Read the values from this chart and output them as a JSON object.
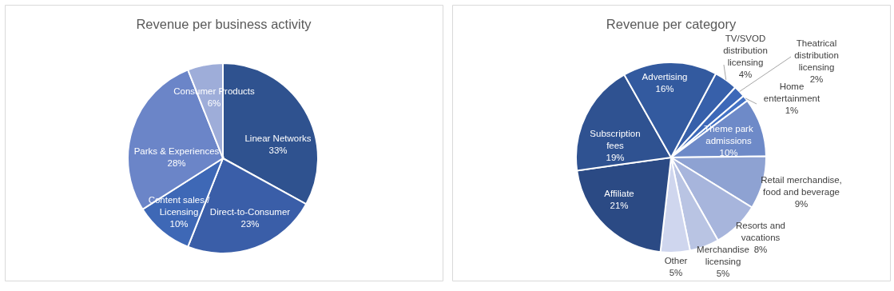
{
  "chart_data": [
    {
      "type": "pie",
      "title": "Revenue per business activity",
      "categories": [
        "Linear Networks",
        "Direct-to-Consumer",
        "Content sales / Licensing",
        "Parks & Experiences",
        "Consumer Products"
      ],
      "values": [
        33,
        23,
        10,
        28,
        6
      ],
      "value_labels": [
        "33%",
        "23%",
        "10%",
        "28%",
        "6%"
      ],
      "colors": [
        "#2f528f",
        "#3a5ea8",
        "#3e68b6",
        "#6b85c8",
        "#9eadd9"
      ]
    },
    {
      "type": "pie",
      "title": "Revenue per category",
      "categories": [
        "TV/SVOD distribution licensing",
        "Theatrical distribution licensing",
        "Home entertainment",
        "Theme park admissions",
        "Retail merchandise, food and beverage",
        "Resorts and vacations",
        "Merchandise licensing",
        "Other",
        "Affiliate",
        "Subscription fees",
        "Advertising"
      ],
      "values": [
        4,
        2,
        1,
        10,
        9,
        8,
        5,
        5,
        21,
        19,
        16
      ],
      "value_labels": [
        "4%",
        "2%",
        "1%",
        "10%",
        "9%",
        "8%",
        "5%",
        "5%",
        "21%",
        "19%",
        "16%"
      ],
      "colors": [
        "#3760aa",
        "#3d68b8",
        "#4472c4",
        "#6e8ac8",
        "#8ea2d2",
        "#a7b5dc",
        "#b9c4e3",
        "#cfd6ee",
        "#2b4a84",
        "#2f5291",
        "#335a9f"
      ]
    }
  ]
}
